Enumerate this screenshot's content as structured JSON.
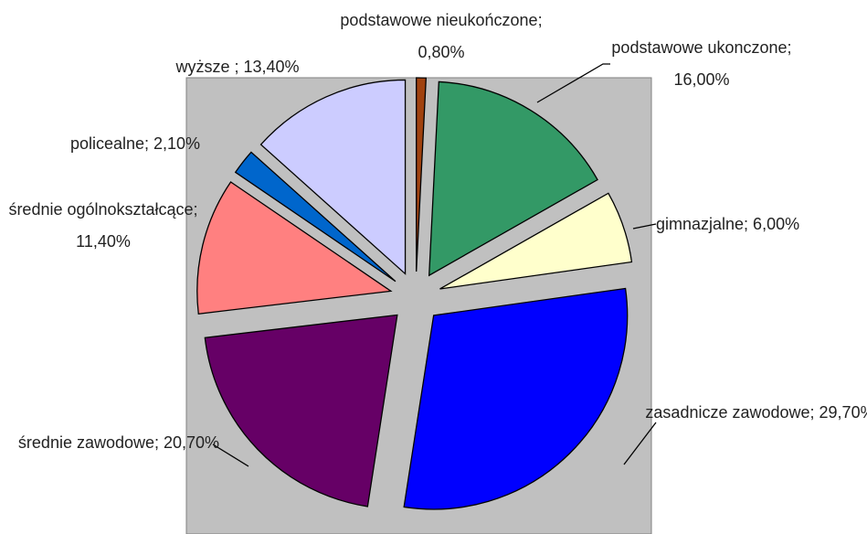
{
  "chart_data": {
    "type": "pie",
    "labels": [
      "podstawowe nieukończone; 0,80%",
      "podstawowe ukonczone; 16,00%",
      "gimnazjalne; 6,00%",
      "zasadnicze zawodowe; 29,70%",
      "średnie zawodowe; 20,70%",
      "średnie ogólnokształcące; 11,40%",
      "policealne; 2,10%",
      "wyższe ; 13,40%"
    ],
    "values": [
      0.8,
      16.0,
      6.0,
      29.7,
      20.7,
      11.4,
      2.1,
      13.4
    ],
    "colors": [
      "#a0420f",
      "#339966",
      "#ffffcc",
      "#0000ff",
      "#660066",
      "#ff8080",
      "#0066cc",
      "#ccccff"
    ],
    "exploded": true
  }
}
